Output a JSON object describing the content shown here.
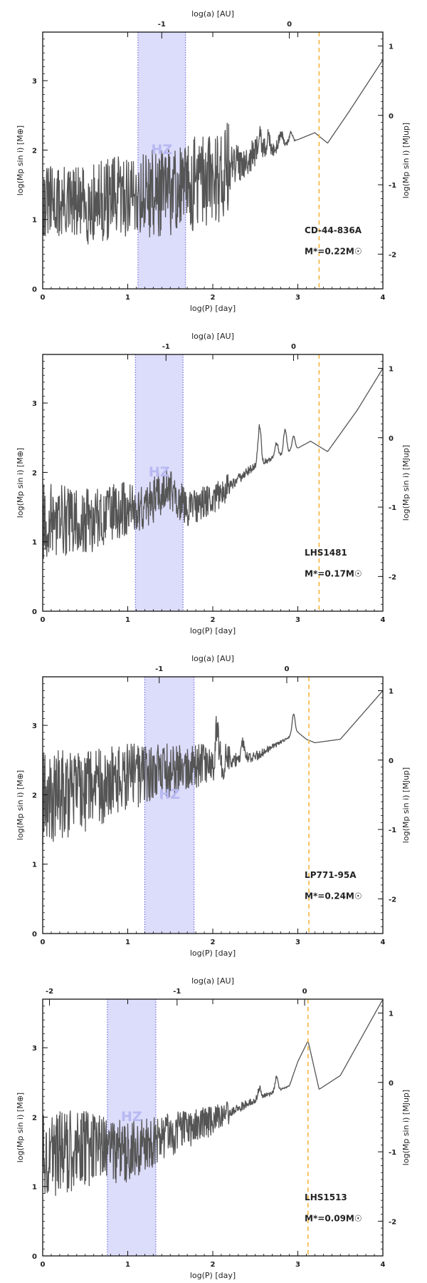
{
  "chart_data": [
    {
      "type": "line",
      "title": "",
      "xlabel": "log(P) [day]",
      "ylabel": "log(Mp sin i) [M⊕]",
      "ylabel_right": "log(Mp sin i) [MJup]",
      "xlabel_top": "log(a) [AU]",
      "xlim": [
        0,
        4
      ],
      "ylim": [
        0,
        3.7
      ],
      "x_ticks": [
        0,
        1,
        2,
        3,
        4
      ],
      "y_ticks": [
        0,
        1,
        2,
        3
      ],
      "top_ticks": [
        {
          "p": 1.4,
          "label": "-1"
        },
        {
          "p": 2.9,
          "label": "0"
        }
      ],
      "right_ticks": [
        {
          "v": 3.5,
          "label": "1"
        },
        {
          "v": 2.5,
          "label": "0"
        },
        {
          "v": 1.5,
          "label": "-1"
        },
        {
          "v": 0.5,
          "label": "-2"
        }
      ],
      "hz": [
        1.12,
        1.68
      ],
      "hz_label": "HZ",
      "vline": 3.25,
      "star_name": "CD-44-836A",
      "star_mass": "M*=0.22M☉",
      "noise_start": 0.95,
      "noise_end": 1.3,
      "anchors": [
        [
          0,
          1.25
        ],
        [
          0.5,
          1.2
        ],
        [
          1,
          1.35
        ],
        [
          1.5,
          1.4
        ],
        [
          2,
          1.6
        ],
        [
          2.5,
          1.95
        ],
        [
          3,
          2.15
        ],
        [
          3.2,
          2.25
        ],
        [
          3.35,
          2.1
        ],
        [
          3.6,
          2.55
        ],
        [
          4,
          3.3
        ]
      ],
      "peaks": [
        [
          2.55,
          0.35
        ],
        [
          2.65,
          0.15
        ],
        [
          2.8,
          0.2
        ],
        [
          2.92,
          0.15
        ]
      ]
    },
    {
      "type": "line",
      "title": "",
      "xlabel": "log(P) [day]",
      "ylabel": "log(Mp sin i) [M⊕]",
      "ylabel_right": "log(Mp sin i) [MJup]",
      "xlabel_top": "log(a) [AU]",
      "xlim": [
        0,
        4
      ],
      "ylim": [
        0,
        3.7
      ],
      "x_ticks": [
        0,
        1,
        2,
        3,
        4
      ],
      "y_ticks": [
        0,
        1,
        2,
        3
      ],
      "top_ticks": [
        {
          "p": 1.45,
          "label": "-1"
        },
        {
          "p": 2.95,
          "label": "0"
        }
      ],
      "right_ticks": [
        {
          "v": 3.5,
          "label": "1"
        },
        {
          "v": 2.5,
          "label": "0"
        },
        {
          "v": 1.5,
          "label": "-1"
        },
        {
          "v": 0.5,
          "label": "-2"
        }
      ],
      "hz": [
        1.09,
        1.65
      ],
      "hz_label": "HZ",
      "vline": 3.25,
      "star_name": "LHS1481",
      "star_mass": "M*=0.17M☉",
      "noise_start": 1.0,
      "noise_end": 0.35,
      "anchors": [
        [
          0,
          1.3
        ],
        [
          0.6,
          1.3
        ],
        [
          1,
          1.5
        ],
        [
          1.2,
          1.45
        ],
        [
          1.45,
          1.8
        ],
        [
          1.7,
          1.5
        ],
        [
          2,
          1.6
        ],
        [
          2.5,
          2.1
        ],
        [
          3,
          2.35
        ],
        [
          3.15,
          2.45
        ],
        [
          3.35,
          2.3
        ],
        [
          3.7,
          2.9
        ],
        [
          4,
          3.5
        ]
      ],
      "peaks": [
        [
          2.55,
          0.55
        ],
        [
          2.75,
          0.2
        ],
        [
          2.85,
          0.35
        ],
        [
          2.95,
          0.2
        ]
      ]
    },
    {
      "type": "line",
      "title": "",
      "xlabel": "log(P) [day]",
      "ylabel": "log(Mp sin i) [M⊕]",
      "ylabel_right": "log(Mp sin i) [MJup]",
      "xlabel_top": "log(a) [AU]",
      "xlim": [
        0,
        4
      ],
      "ylim": [
        0,
        3.7
      ],
      "x_ticks": [
        0,
        1,
        2,
        3,
        4
      ],
      "y_ticks": [
        0,
        1,
        2,
        3
      ],
      "top_ticks": [
        {
          "p": 1.37,
          "label": "-1"
        },
        {
          "p": 2.87,
          "label": "0"
        }
      ],
      "right_ticks": [
        {
          "v": 3.5,
          "label": "1"
        },
        {
          "v": 2.5,
          "label": "0"
        },
        {
          "v": 1.5,
          "label": "-1"
        },
        {
          "v": 0.5,
          "label": "-2"
        }
      ],
      "hz": [
        1.2,
        1.78
      ],
      "hz_label": "HZ",
      "vline": 3.13,
      "star_name": "LP771-95A",
      "star_mass": "M*=0.24M☉",
      "noise_start": 1.25,
      "noise_end": 0.45,
      "anchors": [
        [
          0,
          1.95
        ],
        [
          0.5,
          2.05
        ],
        [
          1,
          2.25
        ],
        [
          1.5,
          2.35
        ],
        [
          2,
          2.45
        ],
        [
          2.5,
          2.55
        ],
        [
          3,
          2.9
        ],
        [
          3.1,
          2.8
        ],
        [
          3.2,
          2.75
        ],
        [
          3.5,
          2.8
        ],
        [
          4,
          3.5
        ]
      ],
      "peaks": [
        [
          2.05,
          0.55
        ],
        [
          2.35,
          0.25
        ],
        [
          2.95,
          0.3
        ]
      ]
    },
    {
      "type": "line",
      "title": "",
      "xlabel": "log(P) [day]",
      "ylabel": "log(Mp sin i) [M⊕]",
      "ylabel_right": "log(Mp sin i) [MJup]",
      "xlabel_top": "log(a) [AU]",
      "xlim": [
        0,
        4
      ],
      "ylim": [
        0,
        3.7
      ],
      "x_ticks": [
        0,
        1,
        2,
        3,
        4
      ],
      "y_ticks": [
        0,
        1,
        2,
        3
      ],
      "top_ticks": [
        {
          "p": 0.08,
          "label": "-2"
        },
        {
          "p": 1.58,
          "label": "-1"
        },
        {
          "p": 3.08,
          "label": "0"
        }
      ],
      "right_ticks": [
        {
          "v": 3.5,
          "label": "1"
        },
        {
          "v": 2.5,
          "label": "0"
        },
        {
          "v": 1.5,
          "label": "-1"
        },
        {
          "v": 0.5,
          "label": "-2"
        }
      ],
      "hz": [
        0.76,
        1.33
      ],
      "hz_label": "HZ",
      "vline": 3.12,
      "star_name": "LHS1513",
      "star_mass": "M*=0.09M☉",
      "noise_start": 1.2,
      "noise_end": 0.3,
      "anchors": [
        [
          0,
          1.45
        ],
        [
          0.5,
          1.55
        ],
        [
          1,
          1.5
        ],
        [
          1.5,
          1.75
        ],
        [
          2,
          1.95
        ],
        [
          2.5,
          2.25
        ],
        [
          2.9,
          2.45
        ],
        [
          3,
          2.8
        ],
        [
          3.12,
          3.1
        ],
        [
          3.25,
          2.4
        ],
        [
          3.5,
          2.6
        ],
        [
          4,
          3.7
        ]
      ],
      "peaks": [
        [
          2.55,
          0.15
        ],
        [
          2.75,
          0.2
        ]
      ]
    }
  ]
}
